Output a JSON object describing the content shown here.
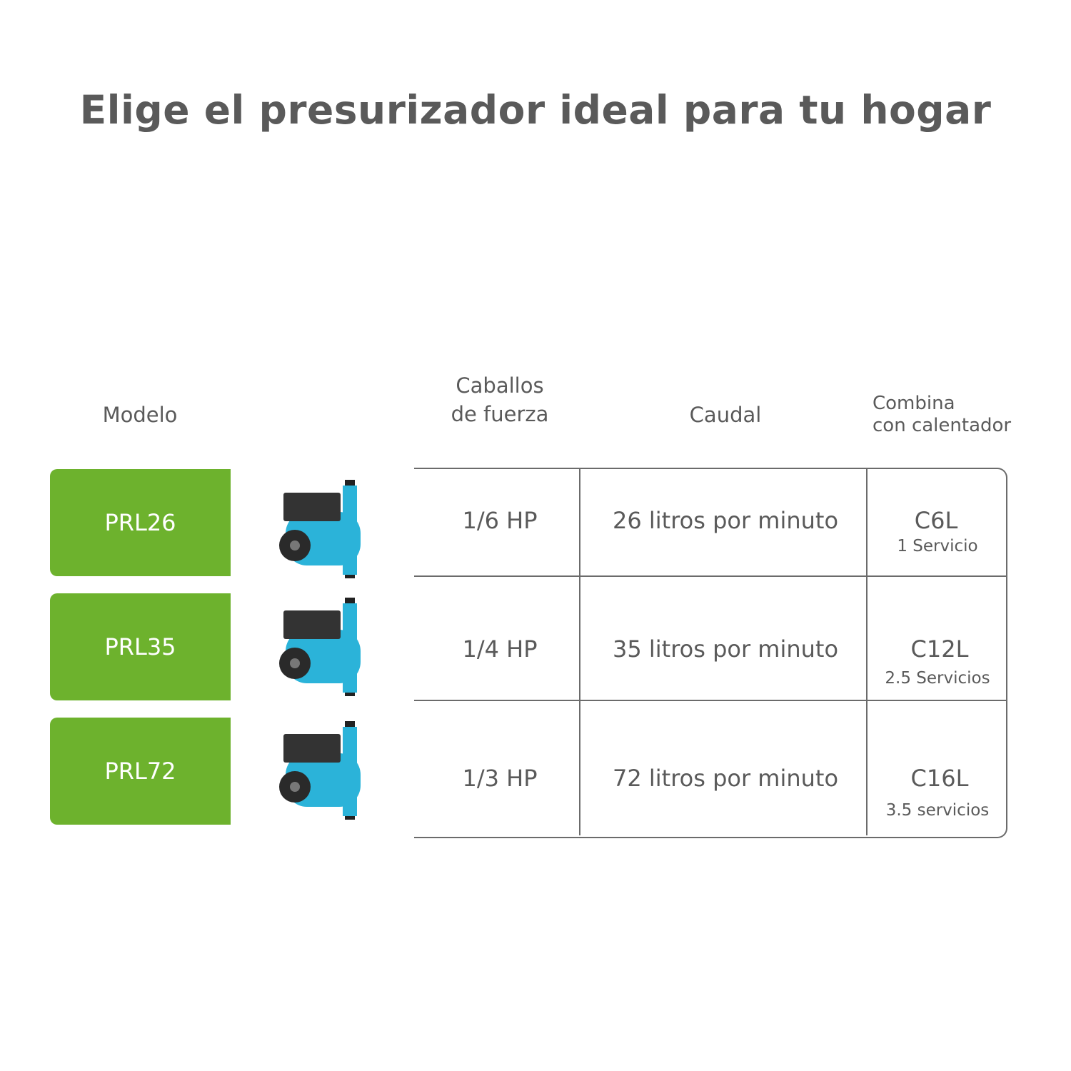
{
  "title": "Elige el presurizador ideal para tu hogar",
  "headers": {
    "model": "Modelo",
    "hp_line1": "Caballos",
    "hp_line2": "de fuerza",
    "flow": "Caudal",
    "heater_line1": "Combina",
    "heater_line2": "con calentador"
  },
  "colors": {
    "accent": "#6db22d",
    "pump_body": "#2bb3d9",
    "text": "#5a5a5a"
  },
  "rows": [
    {
      "model": "PRL26",
      "hp": "1/6 HP",
      "flow": "26 litros por minuto",
      "heater": "C6L",
      "services": "1 Servicio"
    },
    {
      "model": "PRL35",
      "hp": "1/4 HP",
      "flow": "35 litros por minuto",
      "heater": "C12L",
      "services": "2.5 Servicios"
    },
    {
      "model": "PRL72",
      "hp": "1/3 HP",
      "flow": "72 litros por minuto",
      "heater": "C16L",
      "services": "3.5 servicios"
    }
  ]
}
